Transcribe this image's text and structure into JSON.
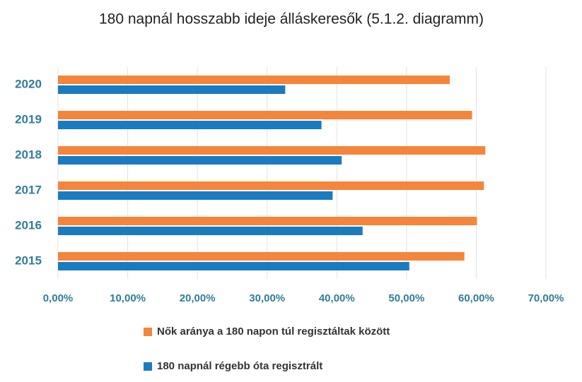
{
  "chart_data": {
    "type": "barh",
    "title": "180 napnál hosszabb ideje álláskeresők (5.1.2. diagramm)",
    "categories": [
      "2020",
      "2019",
      "2018",
      "2017",
      "2016",
      "2015"
    ],
    "series": [
      {
        "name": "Nők aránya a 180 napon túl regisztáltak között",
        "color": "#f4853a",
        "values": [
          56.2,
          59.4,
          61.3,
          61.1,
          60.1,
          58.3
        ]
      },
      {
        "name": "180 napnál régebb óta regisztrált",
        "color": "#1a7bc1",
        "values": [
          32.6,
          37.8,
          40.7,
          39.4,
          43.7,
          50.4
        ]
      }
    ],
    "xlim": [
      0,
      70
    ],
    "xticks": [
      {
        "value": 0,
        "label": "0,00%"
      },
      {
        "value": 10,
        "label": "10,00%"
      },
      {
        "value": 20,
        "label": "20,00%"
      },
      {
        "value": 30,
        "label": "30,00%"
      },
      {
        "value": 40,
        "label": "40,00%"
      },
      {
        "value": 50,
        "label": "50,00%"
      },
      {
        "value": 60,
        "label": "60,00%"
      },
      {
        "value": 70,
        "label": "70,00%"
      }
    ],
    "grid": true,
    "legend": "bottom"
  }
}
